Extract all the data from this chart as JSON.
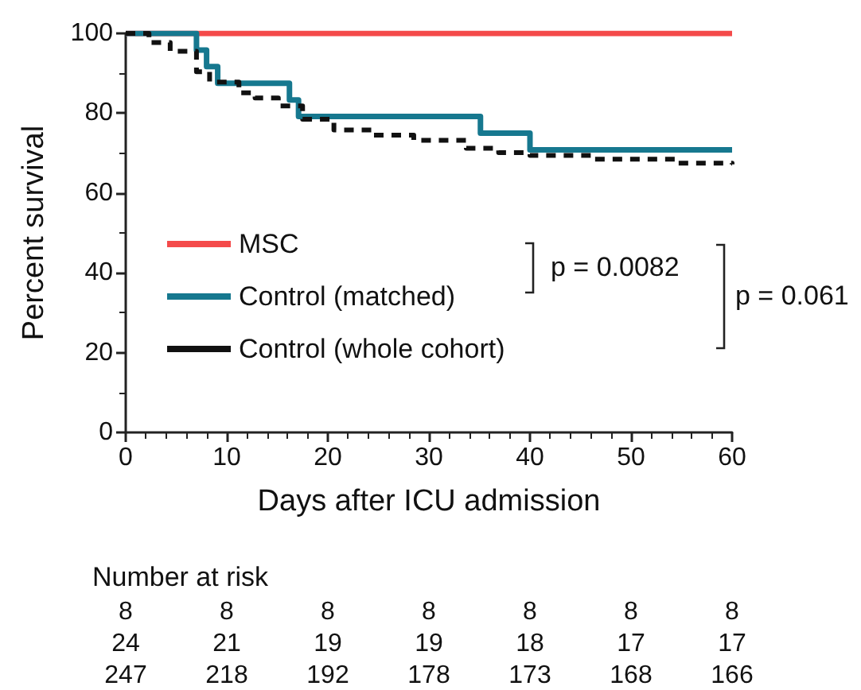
{
  "chart_data": {
    "type": "step",
    "xlabel": "Days after ICU admission",
    "ylabel": "Percent survival",
    "series": [
      {
        "name": "MSC",
        "color": "#f44a4a",
        "line_style": "solid",
        "x": [
          0,
          60
        ],
        "values": [
          100,
          100
        ]
      },
      {
        "name": "Control (matched)",
        "color": "#16788f",
        "line_style": "solid",
        "x": [
          0,
          7,
          8,
          9.1,
          16.2,
          17.1,
          35.1,
          40,
          60
        ],
        "values": [
          100,
          95.8,
          91.7,
          87.5,
          83.3,
          79.2,
          75,
          70.8,
          70.8
        ]
      },
      {
        "name": "Control (whole cohort)",
        "color": "#111111",
        "line_style": "dashed",
        "x": [
          0,
          2.3,
          4.4,
          7,
          8.3,
          11.2,
          12.8,
          15.1,
          17.5,
          20.6,
          24.3,
          28.5,
          33.7,
          36.9,
          40,
          46.3,
          54.7,
          60
        ],
        "values": [
          100,
          97.7,
          95.5,
          90.4,
          87.8,
          85.1,
          83.8,
          81.8,
          78.5,
          75.8,
          74.5,
          73.2,
          71.2,
          70.1,
          69.4,
          68.5,
          67.5,
          67.2
        ]
      }
    ],
    "xlim": [
      0,
      60
    ],
    "xticks": [
      0,
      10,
      20,
      30,
      40,
      50,
      60
    ],
    "ylim": [
      0,
      100
    ],
    "yticks": [
      0,
      20,
      40,
      60,
      80,
      100
    ],
    "grid": false,
    "legend": "bottom left",
    "marker": "none",
    "annotations": [
      "p = 0.0082",
      "p = 0.061",
      "Number at risk",
      "8 8 8 8 8 8 8",
      "24 21 19 19 18 17 17",
      "247 218 192 178 173 168 166"
    ]
  }
}
